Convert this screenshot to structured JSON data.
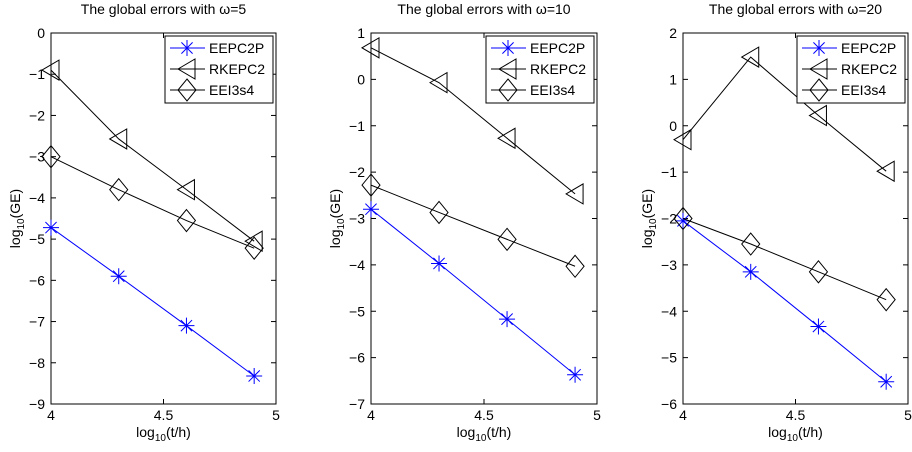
{
  "chart_data": [
    {
      "type": "line",
      "title": "The global errors with ω=5",
      "xlabel_main": "log",
      "xlabel_sub": "10",
      "xlabel_rest": "(t/h)",
      "ylabel_main": "log",
      "ylabel_sub": "10",
      "ylabel_rest": "(GE)",
      "xlim": [
        4,
        5
      ],
      "ylim": [
        -9,
        0
      ],
      "xticks": [
        "4",
        "4.5",
        "5"
      ],
      "xtick_values": [
        4,
        4.5,
        5
      ],
      "yticks": [
        "−9",
        "−8",
        "−7",
        "−6",
        "−5",
        "−4",
        "−3",
        "−2",
        "−1",
        "0"
      ],
      "ytick_values": [
        -9,
        -8,
        -7,
        -6,
        -5,
        -4,
        -3,
        -2,
        -1,
        0
      ],
      "grid": false,
      "legend_position": "top-right",
      "x": [
        4.0,
        4.301,
        4.602,
        4.903
      ],
      "series": [
        {
          "name": "EEPC2P",
          "marker": "star",
          "color": "#0000ff",
          "values": [
            -4.72,
            -5.9,
            -7.1,
            -8.32
          ]
        },
        {
          "name": "RKEPC2",
          "marker": "triangle-left",
          "color": "#000000",
          "values": [
            -0.9,
            -2.57,
            -3.8,
            -5.05
          ]
        },
        {
          "name": "EEI3s4",
          "marker": "diamond",
          "color": "#000000",
          "values": [
            -3.0,
            -3.8,
            -4.55,
            -5.22
          ]
        }
      ]
    },
    {
      "type": "line",
      "title": "The global errors with ω=10",
      "xlabel_main": "log",
      "xlabel_sub": "10",
      "xlabel_rest": "(t/h)",
      "ylabel_main": "log",
      "ylabel_sub": "10",
      "ylabel_rest": "(GE)",
      "xlim": [
        4,
        5
      ],
      "ylim": [
        -7,
        1
      ],
      "xticks": [
        "4",
        "4.5",
        "5"
      ],
      "xtick_values": [
        4,
        4.5,
        5
      ],
      "yticks": [
        "−7",
        "−6",
        "−5",
        "−4",
        "−3",
        "−2",
        "−1",
        "0",
        "1"
      ],
      "ytick_values": [
        -7,
        -6,
        -5,
        -4,
        -3,
        -2,
        -1,
        0,
        1
      ],
      "grid": false,
      "legend_position": "top-right",
      "x": [
        4.0,
        4.301,
        4.602,
        4.903
      ],
      "series": [
        {
          "name": "EEPC2P",
          "marker": "star",
          "color": "#0000ff",
          "values": [
            -2.8,
            -3.97,
            -5.17,
            -6.37
          ]
        },
        {
          "name": "RKEPC2",
          "marker": "triangle-left",
          "color": "#000000",
          "values": [
            0.68,
            -0.07,
            -1.27,
            -2.47
          ]
        },
        {
          "name": "EEI3s4",
          "marker": "diamond",
          "color": "#000000",
          "values": [
            -2.28,
            -2.87,
            -3.45,
            -4.03
          ]
        }
      ]
    },
    {
      "type": "line",
      "title": "The global errors with ω=20",
      "xlabel_main": "log",
      "xlabel_sub": "10",
      "xlabel_rest": "(t/h)",
      "ylabel_main": "log",
      "ylabel_sub": "10",
      "ylabel_rest": "(GE)",
      "xlim": [
        4,
        5
      ],
      "ylim": [
        -6,
        2
      ],
      "xticks": [
        "4",
        "4.5",
        "5"
      ],
      "xtick_values": [
        4,
        4.5,
        5
      ],
      "yticks": [
        "−6",
        "−5",
        "−4",
        "−3",
        "−2",
        "−1",
        "0",
        "1",
        "2"
      ],
      "ytick_values": [
        -6,
        -5,
        -4,
        -3,
        -2,
        -1,
        0,
        1,
        2
      ],
      "grid": false,
      "legend_position": "top-right",
      "x": [
        4.0,
        4.301,
        4.602,
        4.903
      ],
      "series": [
        {
          "name": "EEPC2P",
          "marker": "star",
          "color": "#0000ff",
          "values": [
            -2.05,
            -3.15,
            -4.33,
            -5.52
          ]
        },
        {
          "name": "RKEPC2",
          "marker": "triangle-left",
          "color": "#000000",
          "values": [
            -0.3,
            1.48,
            0.22,
            -0.98
          ]
        },
        {
          "name": "EEI3s4",
          "marker": "diamond",
          "color": "#000000",
          "values": [
            -2.0,
            -2.55,
            -3.15,
            -3.75
          ]
        }
      ]
    }
  ]
}
